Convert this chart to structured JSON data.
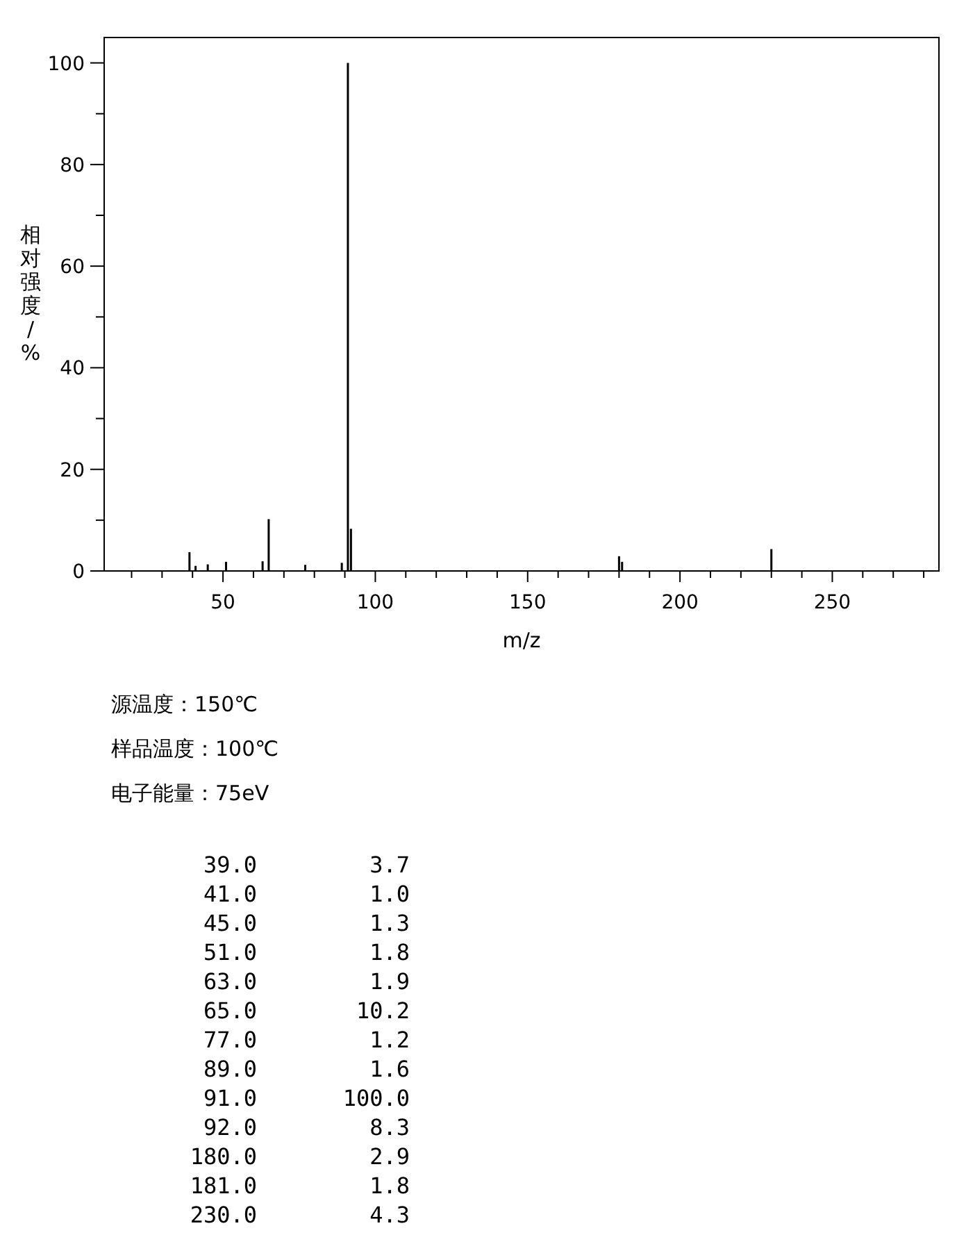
{
  "chart_data": {
    "type": "bar",
    "xlabel": "m/z",
    "ylabel": "相对强度/%",
    "x": [
      39,
      41,
      45,
      51,
      63,
      65,
      77,
      89,
      91,
      92,
      180,
      181,
      230
    ],
    "values": [
      3.7,
      1.0,
      1.3,
      1.8,
      1.9,
      10.2,
      1.2,
      1.6,
      100.0,
      8.3,
      2.9,
      1.8,
      4.3
    ],
    "color": "#000000",
    "xlim": [
      11,
      285
    ],
    "ylim": [
      0,
      105
    ],
    "xticks": [
      {
        "value": 20,
        "label": null
      },
      {
        "value": 30,
        "label": null
      },
      {
        "value": 40,
        "label": null
      },
      50,
      {
        "value": 60,
        "label": null
      },
      {
        "value": 70,
        "label": null
      },
      {
        "value": 80,
        "label": null
      },
      {
        "value": 90,
        "label": null
      },
      100,
      {
        "value": 110,
        "label": null
      },
      {
        "value": 120,
        "label": null
      },
      {
        "value": 130,
        "label": null
      },
      {
        "value": 140,
        "label": null
      },
      150,
      {
        "value": 160,
        "label": null
      },
      {
        "value": 170,
        "label": null
      },
      {
        "value": 180,
        "label": null
      },
      {
        "value": 190,
        "label": null
      },
      200,
      {
        "value": 210,
        "label": null
      },
      {
        "value": 220,
        "label": null
      },
      {
        "value": 230,
        "label": null
      },
      {
        "value": 240,
        "label": null
      },
      250,
      {
        "value": 260,
        "label": null
      },
      {
        "value": 270,
        "label": null
      },
      {
        "value": 280,
        "label": null
      }
    ],
    "yticks": [
      0,
      {
        "value": 10,
        "label": null
      },
      20,
      {
        "value": 30,
        "label": null
      },
      40,
      {
        "value": 50,
        "label": null
      },
      60,
      {
        "value": 70,
        "label": null
      },
      80,
      {
        "value": 90,
        "label": null
      },
      100
    ],
    "annotations": [
      "源温度：150℃",
      "样品温度：100℃",
      "电子能量：75eV",
      "39.0",
      "3.7",
      "41.0",
      "1.0",
      "45.0",
      "1.3",
      "51.0",
      "1.8",
      "63.0",
      "1.9",
      "65.0",
      "10.2",
      "77.0",
      "1.2",
      "89.0",
      "1.6",
      "91.0",
      "100.0",
      "92.0",
      "8.3",
      "180.0",
      "2.9",
      "181.0",
      "1.8",
      "230.0",
      "4.3"
    ]
  }
}
